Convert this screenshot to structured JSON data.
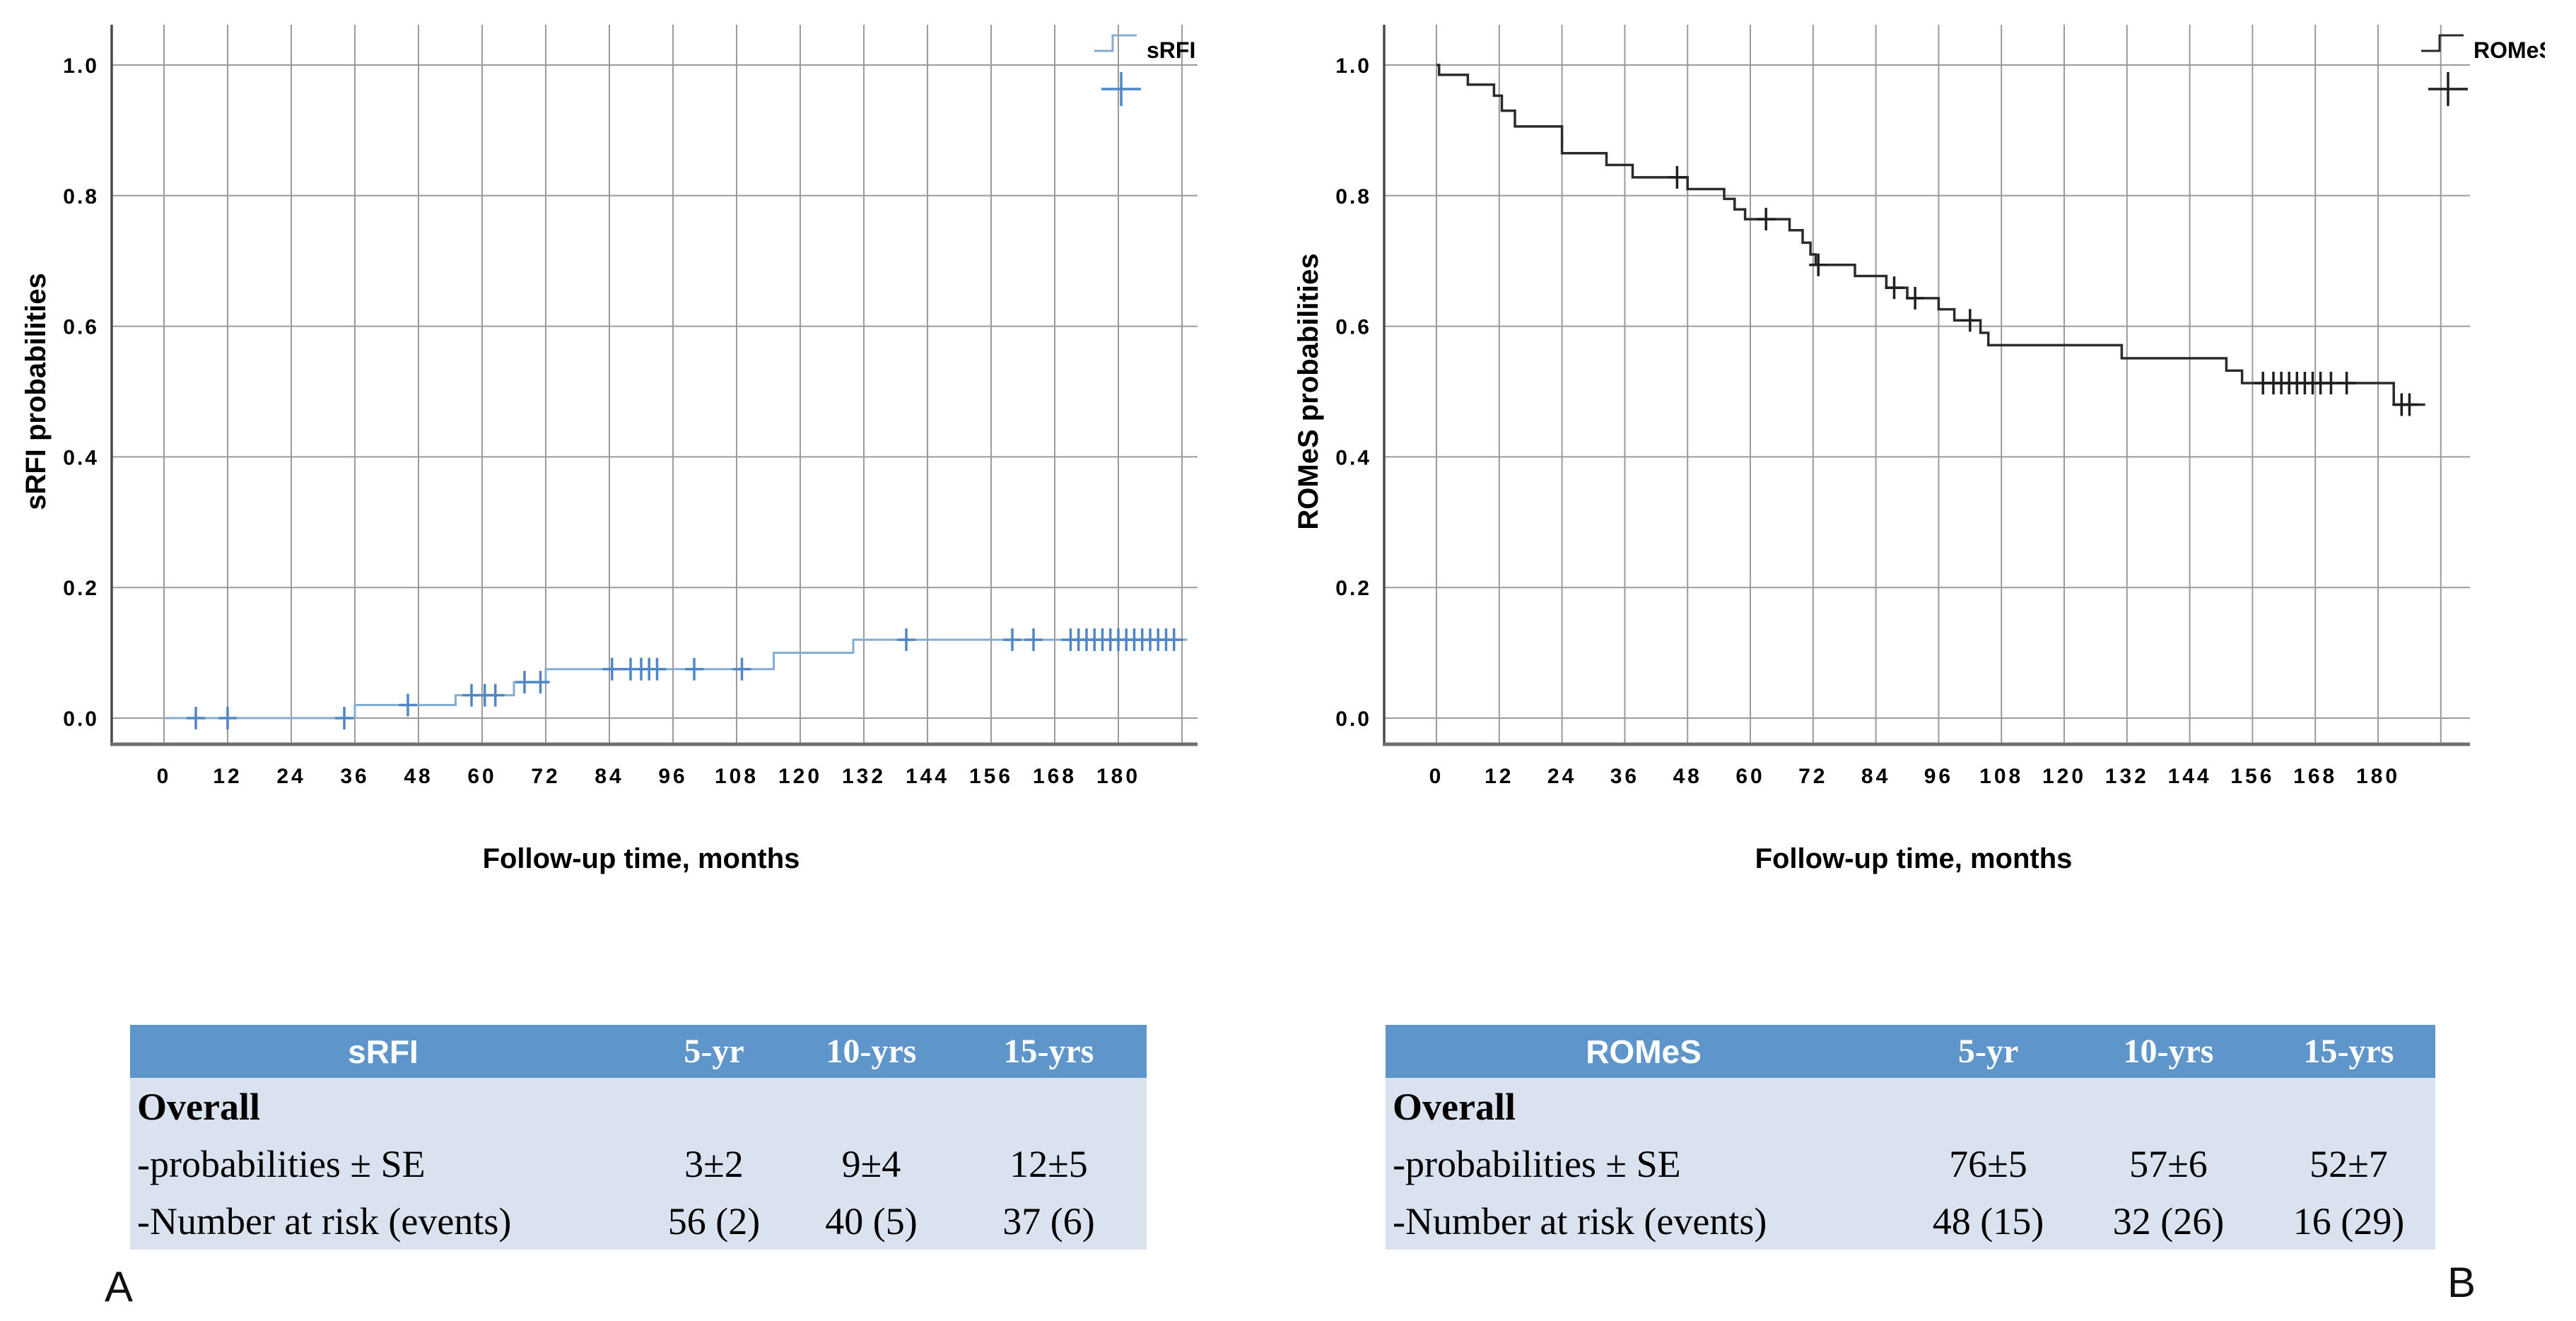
{
  "panel_labels": [
    "A",
    "B"
  ],
  "colors": {
    "srfi_line": "#85add2",
    "srfi_censor": "#4f86c6",
    "romes_line": "#2b2b2b",
    "romes_censor": "#1f1f1f",
    "grid": "#9b9b9b",
    "bottom_axis": "#6f6f6f",
    "y_axis": "#4a4a4a",
    "table_header_bg": "#5e95cb",
    "table_header_text": "#ffffff",
    "table_body_bg": "#dae1ef"
  },
  "chart_data": [
    {
      "id": "srfi",
      "type": "line",
      "subtype": "kaplan-meier-step",
      "series_name": "sRFI",
      "ylabel": "sRFI probabilities",
      "xlabel": "Follow-up time, months",
      "legend_entries": [
        "sRFI",
        "censored"
      ],
      "legend_position": "top-right",
      "grid": true,
      "xticks": [
        0,
        12,
        24,
        36,
        48,
        60,
        72,
        84,
        96,
        108,
        120,
        132,
        144,
        156,
        168,
        180
      ],
      "extra_gridline_months": [
        192
      ],
      "ytick_labels": [
        "0.0",
        "0.2",
        "0.4",
        "0.6",
        "0.8",
        "1.0"
      ],
      "yticks": [
        0.0,
        0.2,
        0.4,
        0.6,
        0.8,
        1.0
      ],
      "xlim": [
        -10,
        196
      ],
      "ylim": [
        -0.04,
        1.06
      ],
      "steps": [
        [
          0,
          0.0
        ],
        [
          36,
          0.02
        ],
        [
          55,
          0.035
        ],
        [
          66,
          0.055
        ],
        [
          72,
          0.075
        ],
        [
          115,
          0.1
        ],
        [
          130,
          0.12
        ]
      ],
      "curve_end": 193,
      "censored": [
        [
          6,
          0
        ],
        [
          12,
          0
        ],
        [
          34,
          0
        ],
        [
          46,
          0.02
        ],
        [
          58,
          0.035
        ],
        [
          60.5,
          0.035
        ],
        [
          62.5,
          0.035
        ],
        [
          68,
          0.055
        ],
        [
          71,
          0.055
        ],
        [
          84.5,
          0.075
        ],
        [
          88,
          0.075
        ],
        [
          90,
          0.075
        ],
        [
          91.5,
          0.075
        ],
        [
          93,
          0.075
        ],
        [
          100,
          0.075
        ],
        [
          109,
          0.075
        ],
        [
          140,
          0.12
        ],
        [
          160,
          0.12
        ],
        [
          164,
          0.12
        ],
        [
          171,
          0.12
        ],
        [
          172.5,
          0.12
        ],
        [
          174,
          0.12
        ],
        [
          175.5,
          0.12
        ],
        [
          177,
          0.12
        ],
        [
          178.5,
          0.12
        ],
        [
          180,
          0.12
        ],
        [
          181.5,
          0.12
        ],
        [
          183,
          0.12
        ],
        [
          184.5,
          0.12
        ],
        [
          186,
          0.12
        ],
        [
          187.5,
          0.12
        ],
        [
          189,
          0.12
        ],
        [
          190.5,
          0.12
        ]
      ],
      "line_color": "#85add2",
      "censor_color": "#4f86c6"
    },
    {
      "id": "romes",
      "type": "line",
      "subtype": "kaplan-meier-step",
      "series_name": "ROMeS",
      "ylabel": "ROMeS probabilities",
      "xlabel": "Follow-up time, months",
      "legend_entries": [
        "ROMeS",
        "censored"
      ],
      "legend_position": "top-right",
      "grid": true,
      "xticks": [
        0,
        12,
        24,
        36,
        48,
        60,
        72,
        84,
        96,
        108,
        120,
        132,
        144,
        156,
        168,
        180
      ],
      "extra_gridline_months": [
        192
      ],
      "ytick_labels": [
        "0.0",
        "0.2",
        "0.4",
        "0.6",
        "0.8",
        "1.0"
      ],
      "yticks": [
        0.0,
        0.2,
        0.4,
        0.6,
        0.8,
        1.0
      ],
      "xlim": [
        -10,
        196
      ],
      "ylim": [
        -0.04,
        1.06
      ],
      "steps": [
        [
          0,
          1.0
        ],
        [
          0.5,
          0.985
        ],
        [
          6,
          0.97
        ],
        [
          11,
          0.953
        ],
        [
          12.5,
          0.93
        ],
        [
          15,
          0.906
        ],
        [
          24,
          0.865
        ],
        [
          32.5,
          0.847
        ],
        [
          37.5,
          0.828
        ],
        [
          48,
          0.81
        ],
        [
          55,
          0.795
        ],
        [
          57,
          0.779
        ],
        [
          59,
          0.764
        ],
        [
          67.5,
          0.747
        ],
        [
          70,
          0.728
        ],
        [
          71.5,
          0.71
        ],
        [
          72.5,
          0.694
        ],
        [
          80,
          0.677
        ],
        [
          86,
          0.659
        ],
        [
          90,
          0.643
        ],
        [
          96,
          0.626
        ],
        [
          99,
          0.609
        ],
        [
          104,
          0.59
        ],
        [
          105.5,
          0.571
        ],
        [
          131,
          0.551
        ],
        [
          151,
          0.532
        ],
        [
          154,
          0.513
        ],
        [
          183,
          0.48
        ]
      ],
      "curve_end": 189,
      "censored": [
        [
          46,
          0.828
        ],
        [
          63,
          0.764
        ],
        [
          73,
          0.694
        ],
        [
          87.5,
          0.659
        ],
        [
          91.5,
          0.643
        ],
        [
          102,
          0.609
        ],
        [
          158,
          0.513
        ],
        [
          160,
          0.513
        ],
        [
          161.5,
          0.513
        ],
        [
          163,
          0.513
        ],
        [
          164.5,
          0.513
        ],
        [
          166,
          0.513
        ],
        [
          167.5,
          0.513
        ],
        [
          169,
          0.513
        ],
        [
          171,
          0.513
        ],
        [
          174,
          0.513
        ],
        [
          184.5,
          0.48
        ],
        [
          186,
          0.48
        ]
      ],
      "line_color": "#2b2b2b",
      "censor_color": "#1f1f1f"
    }
  ],
  "tables": [
    {
      "header": [
        "sRFI",
        "5-yr",
        "10-yrs",
        "15-yrs"
      ],
      "rows": [
        {
          "label": "Overall",
          "values": [
            "",
            "",
            ""
          ]
        },
        {
          "label": "-probabilities ± SE",
          "values": [
            "3±2",
            "9±4",
            "12±5"
          ]
        },
        {
          "label": "-Number at risk (events)",
          "values": [
            "56 (2)",
            "40 (5)",
            "37 (6)"
          ]
        }
      ]
    },
    {
      "header": [
        "ROMeS",
        "5-yr",
        "10-yrs",
        "15-yrs"
      ],
      "rows": [
        {
          "label": "Overall",
          "values": [
            "",
            "",
            ""
          ]
        },
        {
          "label": "-probabilities ± SE",
          "values": [
            "76±5",
            "57±6",
            "52±7"
          ]
        },
        {
          "label": "-Number at risk (events)",
          "values": [
            "48 (15)",
            "32 (26)",
            "16 (29)"
          ]
        }
      ]
    }
  ]
}
